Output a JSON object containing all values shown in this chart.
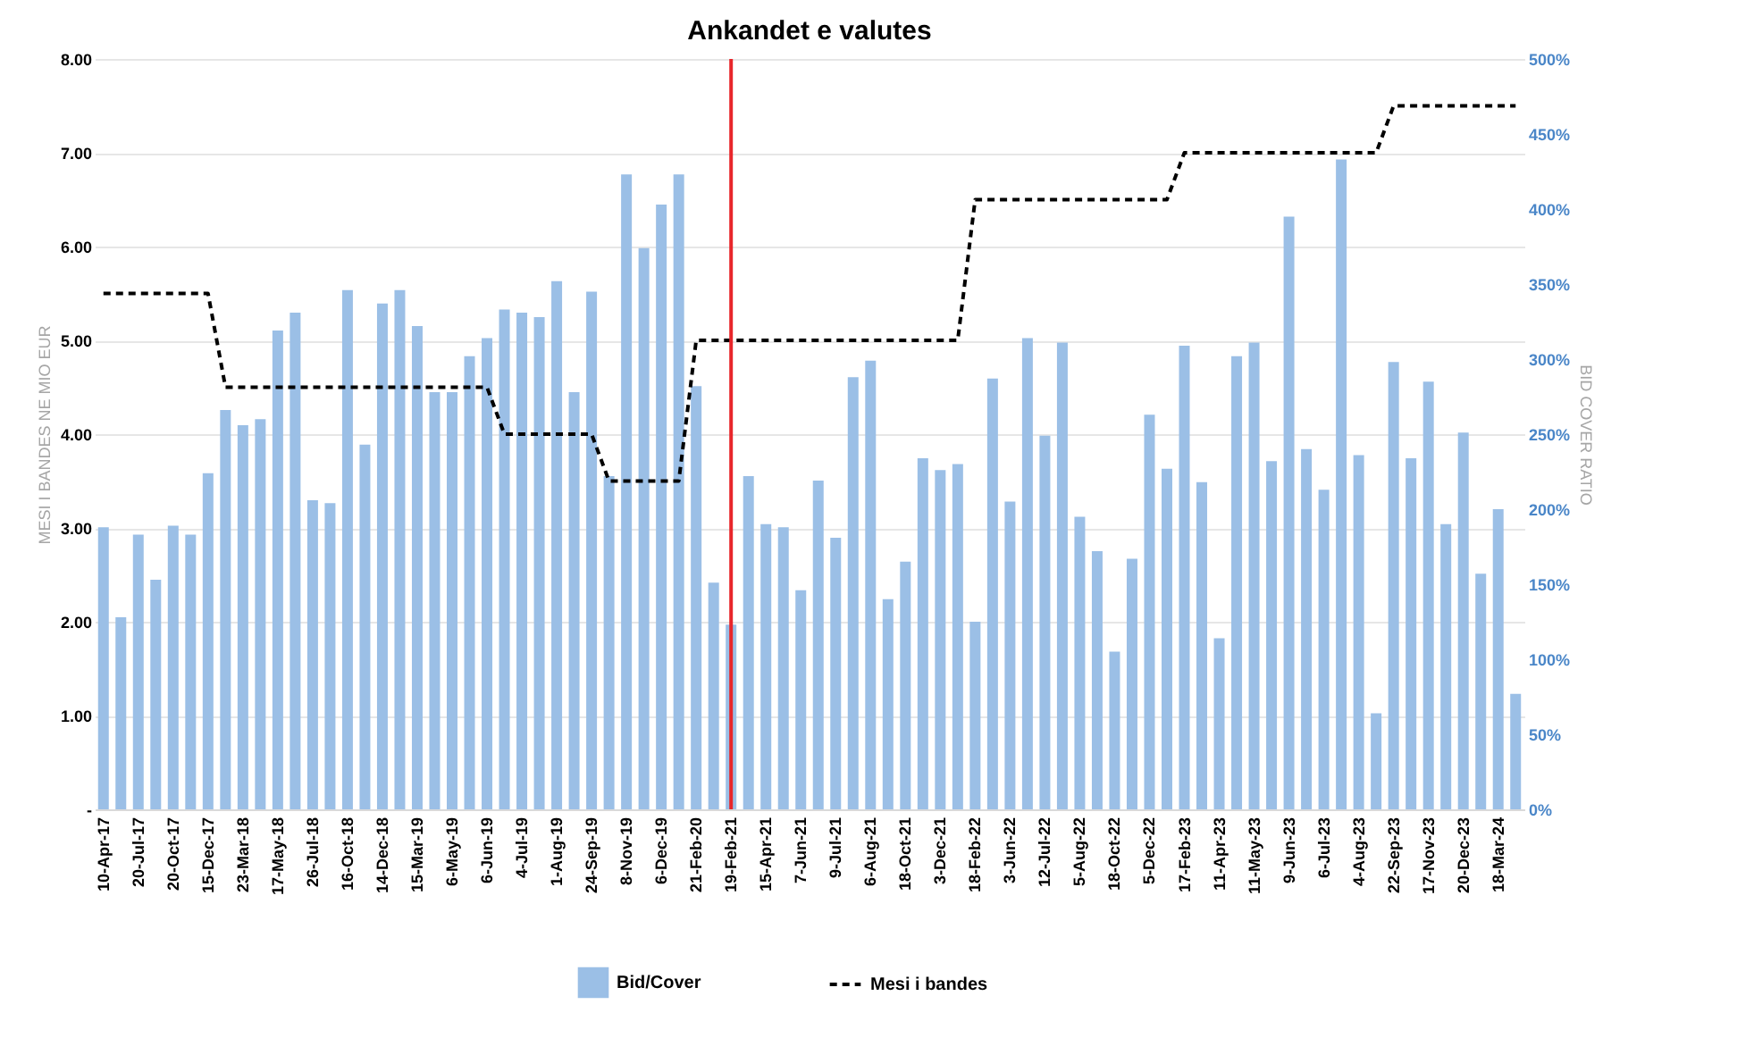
{
  "chart_data": {
    "type": "bar",
    "title": "Ankandet e valutes",
    "ylabel": "MESI I BANDES NE MIO EUR",
    "y2label": "BID COVER RATIO",
    "categories": [
      "10-Apr-17",
      null,
      "20-Jul-17",
      null,
      "20-Oct-17",
      null,
      "15-Dec-17",
      null,
      "23-Mar-18",
      null,
      "17-May-18",
      null,
      "26-Jul-18",
      null,
      "16-Oct-18",
      null,
      "14-Dec-18",
      null,
      "15-Mar-19",
      null,
      "6-May-19",
      null,
      "6-Jun-19",
      null,
      "4-Jul-19",
      null,
      "1-Aug-19",
      null,
      "24-Sep-19",
      null,
      "8-Nov-19",
      null,
      "6-Dec-19",
      null,
      "21-Feb-20",
      null,
      "19-Feb-21",
      null,
      "15-Apr-21",
      null,
      "7-Jun-21",
      null,
      "9-Jul-21",
      null,
      "6-Aug-21",
      null,
      "18-Oct-21",
      null,
      "3-Dec-21",
      null,
      "18-Feb-22",
      null,
      "3-Jun-22",
      null,
      "12-Jul-22",
      null,
      "5-Aug-22",
      null,
      "18-Oct-22",
      null,
      "5-Dec-22",
      null,
      "17-Feb-23",
      null,
      "11-Apr-23",
      null,
      "11-May-23",
      null,
      "9-Jun-23",
      null,
      "6-Jul-23",
      null,
      "4-Aug-23",
      null,
      "22-Sep-23",
      null,
      "17-Nov-23",
      null,
      "20-Dec-23",
      null,
      "18-Mar-24",
      null
    ],
    "series": [
      {
        "name": "Bid/Cover",
        "axis": "y2",
        "color": "#9bbfe6",
        "values": [
          188,
          128,
          183,
          153,
          189,
          183,
          224,
          266,
          256,
          260,
          319,
          331,
          206,
          204,
          346,
          243,
          337,
          346,
          322,
          278,
          278,
          302,
          314,
          333,
          331,
          328,
          352,
          278,
          345,
          222,
          423,
          374,
          403,
          423,
          282,
          151,
          123,
          222,
          190,
          188,
          146,
          219,
          181,
          288,
          299,
          140,
          165,
          234,
          226,
          230,
          125,
          287,
          205,
          314,
          249,
          311,
          195,
          172,
          105,
          167,
          263,
          227,
          309,
          218,
          114,
          302,
          311,
          232,
          395,
          240,
          213,
          433,
          236,
          64,
          298,
          234,
          285,
          190,
          251,
          157,
          200,
          77
        ]
      },
      {
        "name": "Mesi i bandes",
        "type": "line",
        "color": "#000000",
        "line_style": "dashed",
        "values": [
          5.5,
          5.5,
          5.5,
          5.5,
          5.5,
          5.5,
          5.5,
          4.5,
          4.5,
          4.5,
          4.5,
          4.5,
          4.5,
          4.5,
          4.5,
          4.5,
          4.5,
          4.5,
          4.5,
          4.5,
          4.5,
          4.5,
          4.5,
          4.0,
          4.0,
          4.0,
          4.0,
          4.0,
          4.0,
          3.5,
          3.5,
          3.5,
          3.5,
          3.5,
          5.0,
          5.0,
          5.0,
          5.0,
          5.0,
          5.0,
          5.0,
          5.0,
          5.0,
          5.0,
          5.0,
          5.0,
          5.0,
          5.0,
          5.0,
          5.0,
          6.5,
          6.5,
          6.5,
          6.5,
          6.5,
          6.5,
          6.5,
          6.5,
          6.5,
          6.5,
          6.5,
          6.5,
          7.0,
          7.0,
          7.0,
          7.0,
          7.0,
          7.0,
          7.0,
          7.0,
          7.0,
          7.0,
          7.0,
          7.0,
          7.5,
          7.5,
          7.5,
          7.5,
          7.5,
          7.5,
          7.5,
          7.5
        ]
      }
    ],
    "ylim": [
      0,
      8
    ],
    "yticks": [
      {
        "value": 0,
        "label": "-"
      },
      {
        "value": 1,
        "label": "1.00"
      },
      {
        "value": 2,
        "label": "2.00"
      },
      {
        "value": 3,
        "label": "3.00"
      },
      {
        "value": 4,
        "label": "4.00"
      },
      {
        "value": 5,
        "label": "5.00"
      },
      {
        "value": 6,
        "label": "6.00"
      },
      {
        "value": 7,
        "label": "7.00"
      },
      {
        "value": 8,
        "label": "8.00"
      }
    ],
    "y2lim": [
      0,
      500
    ],
    "y2ticks": [
      {
        "value": 0,
        "label": "0%"
      },
      {
        "value": 50,
        "label": "50%"
      },
      {
        "value": 100,
        "label": "100%"
      },
      {
        "value": 150,
        "label": "150%"
      },
      {
        "value": 200,
        "label": "200%"
      },
      {
        "value": 250,
        "label": "250%"
      },
      {
        "value": 300,
        "label": "300%"
      },
      {
        "value": 350,
        "label": "350%"
      },
      {
        "value": 400,
        "label": "400%"
      },
      {
        "value": 450,
        "label": "450%"
      },
      {
        "value": 500,
        "label": "500%"
      }
    ],
    "ref_lines": [
      {
        "axis": "x",
        "value": "19-Feb-21",
        "color": "#e8262b"
      }
    ],
    "grid": "y",
    "legend": "bottom"
  }
}
